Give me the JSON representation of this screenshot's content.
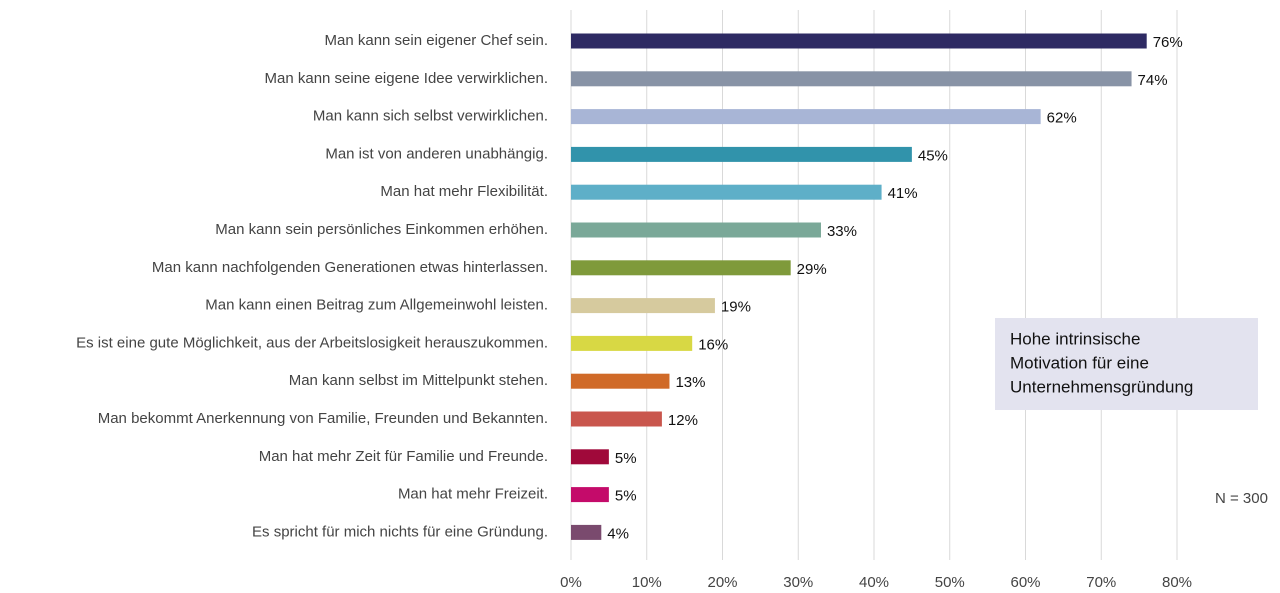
{
  "chart_data": {
    "type": "bar",
    "orientation": "horizontal",
    "categories": [
      "Man kann sein eigener Chef sein.",
      "Man kann seine eigene Idee verwirklichen.",
      "Man kann sich selbst verwirklichen.",
      "Man ist von anderen unabhängig.",
      "Man hat mehr Flexibilität.",
      "Man kann sein persönliches Einkommen erhöhen.",
      "Man kann nachfolgenden Generationen etwas hinterlassen.",
      "Man kann einen Beitrag zum Allgemeinwohl leisten.",
      "Es ist eine gute Möglichkeit, aus der Arbeitslosigkeit herauszukommen.",
      "Man kann selbst im Mittelpunkt stehen.",
      "Man bekommt Anerkennung von Familie, Freunden und Bekannten.",
      "Man hat mehr Zeit für Familie und Freunde.",
      "Man hat mehr Freizeit.",
      "Es spricht für mich nichts für eine Gründung."
    ],
    "values": [
      76,
      74,
      62,
      45,
      41,
      33,
      29,
      19,
      16,
      13,
      12,
      5,
      5,
      4
    ],
    "value_labels": [
      "76%",
      "74%",
      "62%",
      "45%",
      "41%",
      "33%",
      "29%",
      "19%",
      "16%",
      "13%",
      "12%",
      "5%",
      "5%",
      "4%"
    ],
    "colors": [
      "#2e2a63",
      "#8893a6",
      "#a8b5d6",
      "#3193ab",
      "#5eafc8",
      "#7aa898",
      "#7f9a3b",
      "#d6ca9e",
      "#d8d844",
      "#d06a28",
      "#c9564d",
      "#a0093a",
      "#c40b6a",
      "#7a4a6e"
    ],
    "xlim": [
      0,
      80
    ],
    "xticks": [
      {
        "value": 0,
        "label": "0%"
      },
      {
        "value": 10,
        "label": "10%"
      },
      {
        "value": 20,
        "label": "20%"
      },
      {
        "value": 30,
        "label": "30%"
      },
      {
        "value": 40,
        "label": "40%"
      },
      {
        "value": 50,
        "label": "50%"
      },
      {
        "value": 60,
        "label": "60%"
      },
      {
        "value": 70,
        "label": "70%"
      },
      {
        "value": 80,
        "label": "80%"
      }
    ],
    "grid": true,
    "annotation": [
      "Hohe intrinsische",
      "Motivation für eine",
      "Unternehmensgründung"
    ],
    "note": "N = 300"
  }
}
